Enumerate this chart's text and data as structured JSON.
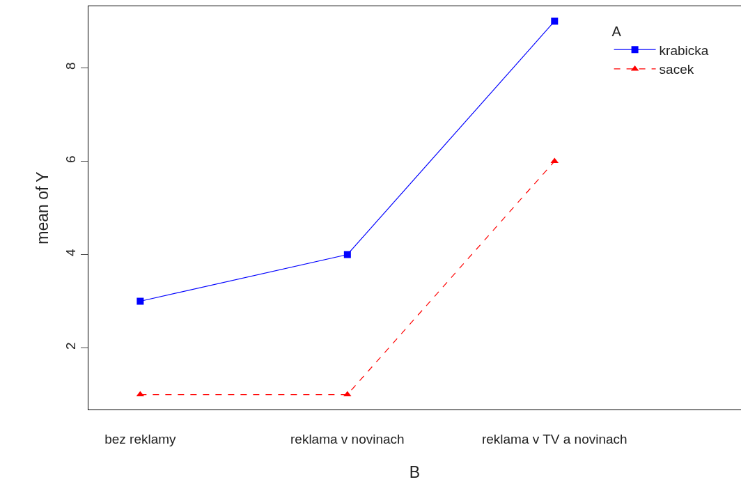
{
  "chart_data": {
    "type": "line",
    "xlabel": "B",
    "ylabel": "mean of Y",
    "legend_title": "A",
    "legend": "top right",
    "categories": [
      "bez reklamy",
      "reklama v novinach",
      "reklama v TV a novinach"
    ],
    "series": [
      {
        "name": "krabicka",
        "color": "#0000ff",
        "marker": "square",
        "line_style": "solid",
        "values": [
          3,
          4,
          9
        ]
      },
      {
        "name": "sacek",
        "color": "#ff0000",
        "marker": "triangle",
        "line_style": "dashed",
        "values": [
          1,
          1,
          6
        ]
      }
    ],
    "ylim": [
      0.68,
      9.32
    ],
    "yticks": [
      2,
      4,
      6,
      8
    ]
  }
}
